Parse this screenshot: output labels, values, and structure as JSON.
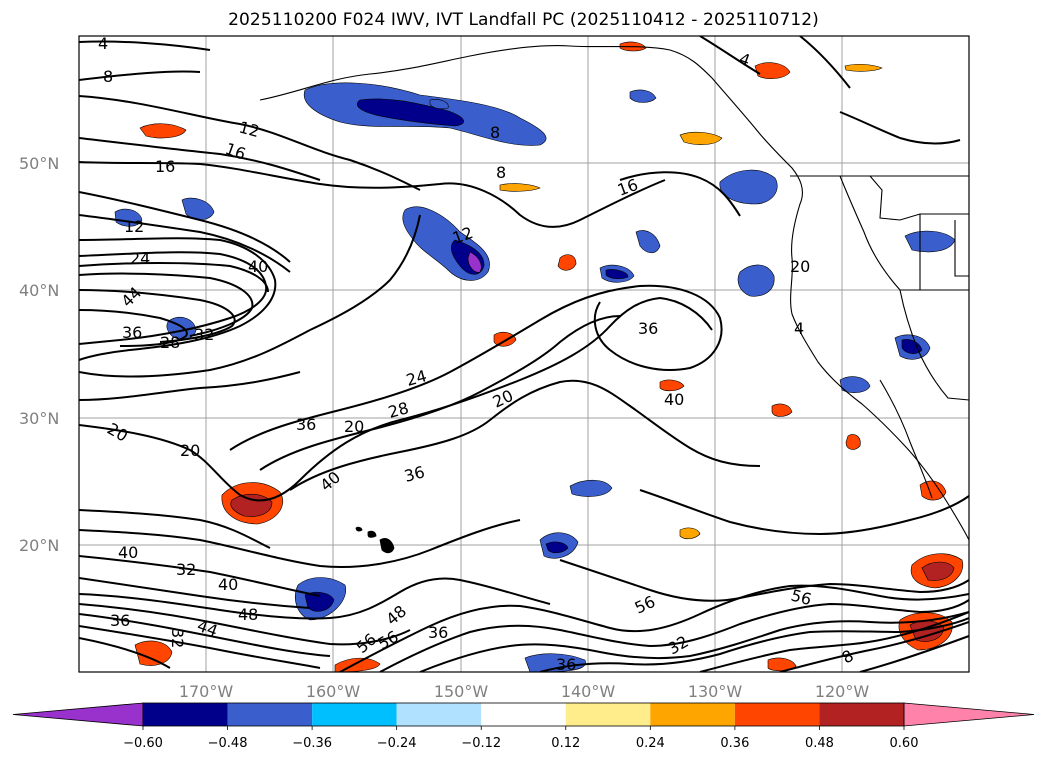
{
  "title": "2025110200 F024 IWV, IVT Landfall PC (2025110412 - 2025110712)",
  "colors": {
    "contour": "#000000",
    "grid": "#a0a0a0",
    "coast": "#000000",
    "tick_label": "#808080"
  },
  "map": {
    "lon_range": [
      180,
      110
    ],
    "lat_range": [
      10,
      60
    ],
    "lon_ticks": [
      "170°W",
      "160°W",
      "150°W",
      "140°W",
      "130°W",
      "120°W"
    ],
    "lat_ticks": [
      "50°N",
      "40°N",
      "30°N",
      "20°N"
    ],
    "grid": true
  },
  "contour_labels": [
    "4",
    "8",
    "12",
    "16",
    "8",
    "8",
    "16",
    "12",
    "24",
    "40",
    "44",
    "36",
    "28",
    "32",
    "12",
    "36",
    "16",
    "24",
    "28",
    "20",
    "36",
    "20",
    "20",
    "20",
    "40",
    "40",
    "36",
    "40",
    "32",
    "40",
    "48",
    "36",
    "32",
    "44",
    "48",
    "56",
    "56",
    "36",
    "56",
    "32",
    "56",
    "36",
    "8",
    "20",
    "4",
    "4"
  ],
  "colorbar": {
    "colors": [
      "#9932cc",
      "#00008b",
      "#3a5fcd",
      "#00bfff",
      "#b0e2ff",
      "#ffffff",
      "#ffec8b",
      "#ffa500",
      "#ff4500",
      "#b22222",
      "#ff82ab"
    ],
    "labels": [
      "−0.60",
      "−0.48",
      "−0.36",
      "−0.24",
      "−0.12",
      "0.12",
      "0.24",
      "0.36",
      "0.48",
      "0.60"
    ],
    "extend": "both"
  }
}
